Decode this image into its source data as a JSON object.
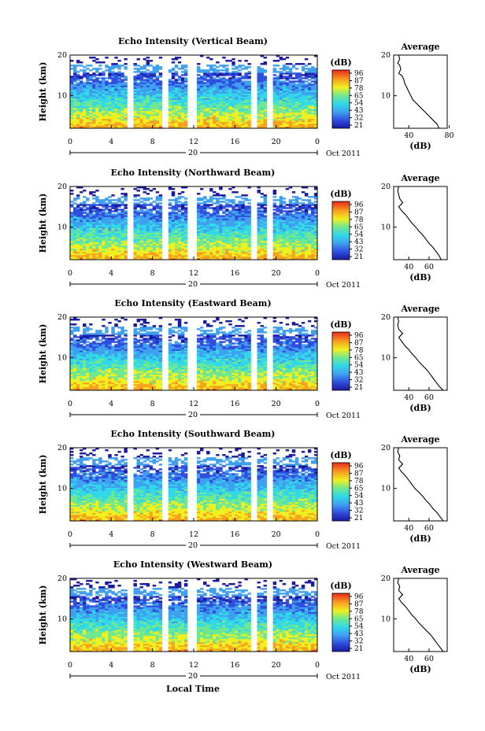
{
  "figure": {
    "xaxis_label": "Local Time",
    "date_label": "Oct 2011",
    "day_label": "20",
    "ylabel": "Height (km)",
    "profile_title": "Average",
    "profile_xunit": "(dB)",
    "colorbar_unit": "(dB)",
    "colorbar_ticks": [
      "96",
      "87",
      "78",
      "65",
      "54",
      "43",
      "32",
      "21"
    ]
  },
  "chart_data": [
    {
      "type": "heatmap",
      "title": "Echo Intensity (Vertical Beam)",
      "xlim": [
        0,
        24
      ],
      "xticks": [
        "0",
        "4",
        "8",
        "12",
        "16",
        "20",
        "0"
      ],
      "ylim": [
        2,
        20
      ],
      "yticks": [
        "10",
        "20"
      ],
      "zrange_dB": [
        21,
        96
      ],
      "data_gaps_hours": [
        [
          5.5,
          6.2
        ],
        [
          8.8,
          9.5
        ],
        [
          11.4,
          12.4
        ],
        [
          17.6,
          18.0
        ],
        [
          19.2,
          19.6
        ]
      ],
      "colorbar_ticks": [
        "96",
        "87",
        "78",
        "65",
        "54",
        "43",
        "32",
        "21"
      ]
    },
    {
      "type": "line",
      "title": "Average",
      "xlabel": "(dB)",
      "xticks": [
        "40",
        "80"
      ],
      "ylim": [
        2,
        20
      ],
      "yticks": [
        "10",
        "20"
      ],
      "profile": [
        [
          70,
          2
        ],
        [
          68,
          3
        ],
        [
          64,
          4
        ],
        [
          60,
          5
        ],
        [
          56,
          6
        ],
        [
          52,
          7
        ],
        [
          48,
          8
        ],
        [
          44,
          9
        ],
        [
          42,
          10
        ],
        [
          40,
          11
        ],
        [
          38,
          12
        ],
        [
          36,
          13
        ],
        [
          35,
          14
        ],
        [
          33,
          15
        ],
        [
          30,
          15.5
        ],
        [
          32,
          16.5
        ],
        [
          31,
          17.5
        ],
        [
          29,
          18
        ],
        [
          31,
          19
        ],
        [
          30,
          20
        ]
      ]
    },
    {
      "type": "heatmap",
      "title": "Echo Intensity (Northward Beam)",
      "xlim": [
        0,
        24
      ],
      "xticks": [
        "0",
        "4",
        "8",
        "12",
        "16",
        "20",
        "0"
      ],
      "ylim": [
        2,
        20
      ],
      "yticks": [
        "10",
        "20"
      ],
      "zrange_dB": [
        21,
        96
      ],
      "data_gaps_hours": [
        [
          5.5,
          6.2
        ],
        [
          8.8,
          9.5
        ],
        [
          11.4,
          12.4
        ],
        [
          17.6,
          18.0
        ],
        [
          19.2,
          19.6
        ]
      ],
      "colorbar_ticks": [
        "96",
        "87",
        "78",
        "65",
        "54",
        "43",
        "32",
        "21"
      ]
    },
    {
      "type": "line",
      "title": "Average",
      "xlabel": "(dB)",
      "xticks": [
        "40",
        "60"
      ],
      "ylim": [
        2,
        20
      ],
      "yticks": [
        "10",
        "20"
      ],
      "profile": [
        [
          72,
          2
        ],
        [
          70,
          3
        ],
        [
          67,
          4
        ],
        [
          64,
          5
        ],
        [
          60,
          6
        ],
        [
          57,
          7
        ],
        [
          54,
          8
        ],
        [
          50,
          9
        ],
        [
          47,
          10
        ],
        [
          43,
          11
        ],
        [
          40,
          12
        ],
        [
          37,
          13
        ],
        [
          33,
          14
        ],
        [
          30,
          15
        ],
        [
          34,
          16
        ],
        [
          31,
          17
        ],
        [
          30,
          18
        ],
        [
          29,
          19
        ],
        [
          30,
          20
        ]
      ]
    },
    {
      "type": "heatmap",
      "title": "Echo Intensity (Eastward Beam)",
      "xlim": [
        0,
        24
      ],
      "xticks": [
        "0",
        "4",
        "8",
        "12",
        "16",
        "20",
        "0"
      ],
      "ylim": [
        2,
        20
      ],
      "yticks": [
        "10",
        "20"
      ],
      "zrange_dB": [
        21,
        96
      ],
      "data_gaps_hours": [
        [
          5.5,
          6.2
        ],
        [
          8.8,
          9.5
        ],
        [
          11.4,
          12.4
        ],
        [
          17.6,
          18.0
        ],
        [
          19.2,
          19.6
        ]
      ],
      "colorbar_ticks": [
        "96",
        "87",
        "78",
        "65",
        "54",
        "43",
        "32",
        "21"
      ]
    },
    {
      "type": "line",
      "title": "Average",
      "xlabel": "(dB)",
      "xticks": [
        "40",
        "60"
      ],
      "ylim": [
        2,
        20
      ],
      "yticks": [
        "10",
        "20"
      ],
      "profile": [
        [
          74,
          2
        ],
        [
          70,
          3
        ],
        [
          67,
          4
        ],
        [
          64,
          5
        ],
        [
          61,
          6
        ],
        [
          58,
          7
        ],
        [
          54,
          8
        ],
        [
          50,
          9
        ],
        [
          47,
          10
        ],
        [
          43,
          11
        ],
        [
          40,
          12
        ],
        [
          36,
          13
        ],
        [
          33,
          14
        ],
        [
          30,
          15
        ],
        [
          34,
          16
        ],
        [
          30,
          17
        ],
        [
          29,
          18
        ],
        [
          30,
          19
        ],
        [
          29,
          20
        ]
      ]
    },
    {
      "type": "heatmap",
      "title": "Echo Intensity (Southward Beam)",
      "xlim": [
        0,
        24
      ],
      "xticks": [
        "0",
        "4",
        "8",
        "12",
        "16",
        "20",
        "0"
      ],
      "ylim": [
        2,
        20
      ],
      "yticks": [
        "10",
        "20"
      ],
      "zrange_dB": [
        21,
        96
      ],
      "data_gaps_hours": [
        [
          5.5,
          6.2
        ],
        [
          8.8,
          9.5
        ],
        [
          11.4,
          12.4
        ],
        [
          17.6,
          18.0
        ],
        [
          19.2,
          19.6
        ]
      ],
      "colorbar_ticks": [
        "96",
        "87",
        "78",
        "65",
        "54",
        "43",
        "32",
        "21"
      ]
    },
    {
      "type": "line",
      "title": "Average",
      "xlabel": "(dB)",
      "xticks": [
        "40",
        "60"
      ],
      "ylim": [
        2,
        20
      ],
      "yticks": [
        "10",
        "20"
      ],
      "profile": [
        [
          74,
          2
        ],
        [
          71,
          3
        ],
        [
          68,
          4
        ],
        [
          64,
          5
        ],
        [
          61,
          6
        ],
        [
          57,
          7
        ],
        [
          54,
          8
        ],
        [
          50,
          9
        ],
        [
          46,
          10
        ],
        [
          43,
          11
        ],
        [
          40,
          12
        ],
        [
          37,
          13
        ],
        [
          33,
          14
        ],
        [
          30,
          15
        ],
        [
          34,
          16
        ],
        [
          30,
          17
        ],
        [
          31,
          18
        ],
        [
          29,
          19
        ],
        [
          30,
          20
        ]
      ]
    },
    {
      "type": "heatmap",
      "title": "Echo Intensity (Westward Beam)",
      "xlim": [
        0,
        24
      ],
      "xticks": [
        "0",
        "4",
        "8",
        "12",
        "16",
        "20",
        "0"
      ],
      "ylim": [
        2,
        20
      ],
      "yticks": [
        "10",
        "20"
      ],
      "zrange_dB": [
        21,
        96
      ],
      "data_gaps_hours": [
        [
          5.5,
          6.2
        ],
        [
          8.8,
          9.5
        ],
        [
          11.4,
          12.4
        ],
        [
          17.6,
          18.0
        ],
        [
          19.2,
          19.6
        ]
      ],
      "colorbar_ticks": [
        "96",
        "87",
        "78",
        "65",
        "54",
        "43",
        "32",
        "21"
      ]
    },
    {
      "type": "line",
      "title": "Average",
      "xlabel": "(dB)",
      "xticks": [
        "40",
        "60"
      ],
      "ylim": [
        2,
        20
      ],
      "yticks": [
        "10",
        "20"
      ],
      "profile": [
        [
          74,
          2
        ],
        [
          71,
          3
        ],
        [
          68,
          4
        ],
        [
          65,
          5
        ],
        [
          62,
          6
        ],
        [
          58,
          7
        ],
        [
          54,
          8
        ],
        [
          50,
          9
        ],
        [
          47,
          10
        ],
        [
          43,
          11
        ],
        [
          40,
          12
        ],
        [
          37,
          13
        ],
        [
          33,
          14
        ],
        [
          30,
          15
        ],
        [
          34,
          16
        ],
        [
          30,
          17
        ],
        [
          31,
          18
        ],
        [
          29,
          19
        ],
        [
          30,
          20
        ]
      ]
    }
  ]
}
